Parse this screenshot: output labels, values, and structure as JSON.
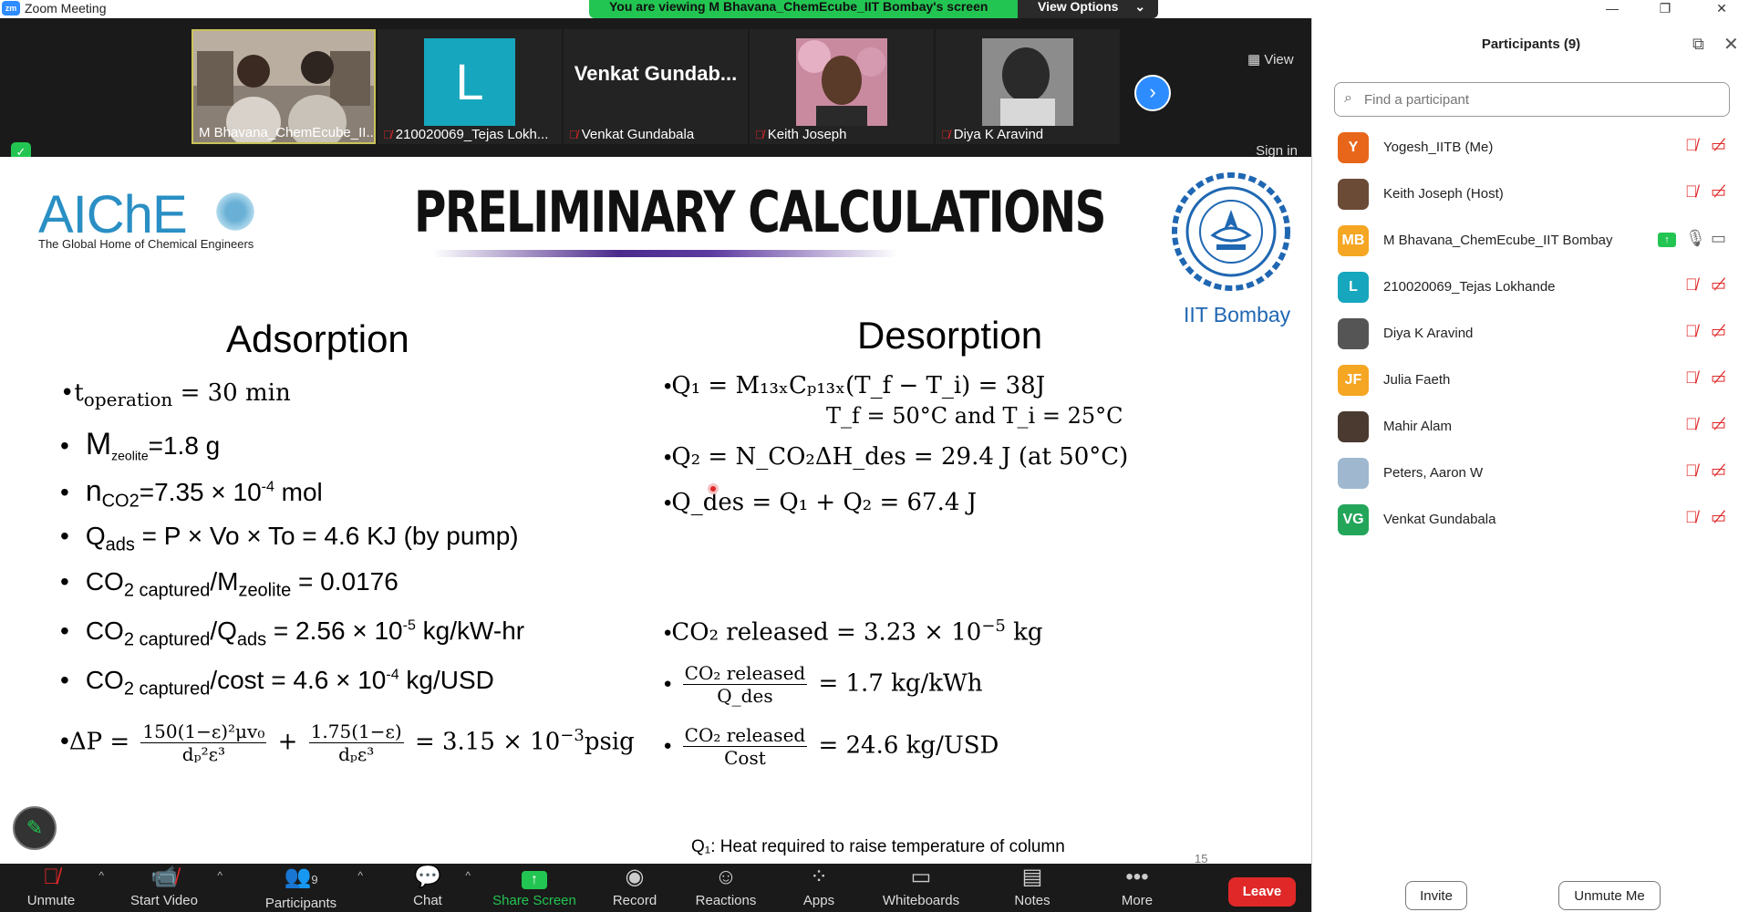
{
  "window": {
    "title": "Zoom Meeting",
    "app_icon": "zm",
    "minimize": "—",
    "restore": "❐",
    "close": "✕"
  },
  "banner": {
    "viewing_text": "You are viewing M Bhavana_ChemEcube_IIT Bombay's screen",
    "view_options": "View Options",
    "view_options_caret": "⌄"
  },
  "video_strip": {
    "tiles": [
      {
        "name": "M Bhavana_ChemEcube_II...",
        "muted": false,
        "active": true
      },
      {
        "name": "210020069_Tejas Lokh...",
        "muted": true,
        "initial": "L",
        "initial_bg": "#16a6bd"
      },
      {
        "name": "Venkat Gundabala",
        "muted": true,
        "big_name": "Venkat Gundab..."
      },
      {
        "name": "Keith Joseph",
        "muted": true
      },
      {
        "name": "Diya K Aravind",
        "muted": true
      }
    ],
    "next_arrow": "›",
    "view_button": "View",
    "view_icon": "grid-icon",
    "sign_in": "Sign in"
  },
  "slide": {
    "logo_text": "AIChE",
    "logo_tagline": "The Global Home of Chemical Engineers",
    "title": "PRELIMINARY CALCULATIONS",
    "institute_name": "IIT Bombay",
    "adsorption_heading": "Adsorption",
    "desorption_heading": "Desorption",
    "adsorption": {
      "t_operation": "t",
      "t_operation_sub": "operation",
      "t_operation_val": " = 30 min",
      "m_zeolite": "M",
      "m_zeolite_sub": "zeolite",
      "m_zeolite_val": "=1.8 g",
      "n_co2": "n",
      "n_co2_sub": "CO2",
      "n_co2_val": "=7.35 × 10",
      "n_co2_exp": "-4",
      "n_co2_unit": " mol",
      "q_ads": "Q",
      "q_ads_sub": "ads",
      "q_ads_val": " = P × Vo × To = 4.6 KJ  (by pump)",
      "ratio1_a": "CO",
      "ratio1_b": "2 captured",
      "ratio1_c": "/M",
      "ratio1_d": "zeolite",
      "ratio1_val": " = 0.0176",
      "ratio2_a": "CO",
      "ratio2_b": "2 captured",
      "ratio2_c": "/Q",
      "ratio2_d": "ads",
      "ratio2_val": " = 2.56 × 10",
      "ratio2_exp": "-5",
      "ratio2_unit": " kg/kW-hr",
      "ratio3_a": "CO",
      "ratio3_b": "2 captured",
      "ratio3_c": "/cost = 4.6 × 10",
      "ratio3_exp": "-4",
      "ratio3_unit": " kg/USD",
      "dp_lhs": "ΔP = ",
      "dp_num1": "150(1−ε)²μv₀",
      "dp_den1": "dₚ²ε³",
      "dp_plus": "+",
      "dp_num2": "1.75(1−ε)",
      "dp_den2": "dₚε³",
      "dp_rhs": "= 3.15 × 10",
      "dp_exp": "−3",
      "dp_unit": "psig"
    },
    "desorption": {
      "q1": "Q₁ =  M₁₃ₓCₚ₁₃ₓ(T_f − T_i) = 38J",
      "q1_cond": "T_f =  50°C and T_i = 25°C",
      "q2": "Q₂ = N_CO₂ΔH_des =   29.4 J (at 50°C)",
      "qdes": "Q_des =  Q₁ + Q₂ = 67.4 J",
      "co2_released": "CO₂ released = 3.23 × 10",
      "co2_released_exp": "−5",
      "co2_released_unit": " kg",
      "frac1_num": "CO₂ released",
      "frac1_den": "Q_des",
      "frac1_val": "= 1.7 kg/kWh",
      "frac2_num": "CO₂ released",
      "frac2_den": "Cost",
      "frac2_val": "= 24.6 kg/USD"
    },
    "footnote": "Q₁: Heat required to raise temperature of column",
    "page_number": "15"
  },
  "toolbar": {
    "items": [
      {
        "label": "Unmute",
        "icon": "mic-off-icon"
      },
      {
        "label": "Start Video",
        "icon": "video-off-icon"
      },
      {
        "label": "Participants",
        "icon": "participants-icon",
        "count": "9"
      },
      {
        "label": "Chat",
        "icon": "chat-icon"
      },
      {
        "label": "Share Screen",
        "icon": "share-screen-icon"
      },
      {
        "label": "Record",
        "icon": "record-icon"
      },
      {
        "label": "Reactions",
        "icon": "reactions-icon"
      },
      {
        "label": "Apps",
        "icon": "apps-icon"
      },
      {
        "label": "Whiteboards",
        "icon": "whiteboard-icon"
      },
      {
        "label": "Notes",
        "icon": "notes-icon"
      },
      {
        "label": "More",
        "icon": "more-icon"
      }
    ],
    "leave": "Leave"
  },
  "participants": {
    "title": "Participants (9)",
    "search_placeholder": "Find a participant",
    "list": [
      {
        "name": "Yogesh_IITB (Me)",
        "initials": "Y",
        "color": "#e8661a",
        "photo": false
      },
      {
        "name": "Keith Joseph (Host)",
        "initials": "",
        "color": "#6b4a36",
        "photo": true
      },
      {
        "name": "M Bhavana_ChemEcube_IIT Bombay",
        "initials": "MB",
        "color": "#f5a623",
        "photo": false,
        "sharing": true
      },
      {
        "name": "210020069_Tejas Lokhande",
        "initials": "L",
        "color": "#16a6bd",
        "photo": false
      },
      {
        "name": "Diya K Aravind",
        "initials": "",
        "color": "#555555",
        "photo": true
      },
      {
        "name": "Julia Faeth",
        "initials": "JF",
        "color": "#f5a623",
        "photo": false
      },
      {
        "name": "Mahir Alam",
        "initials": "",
        "color": "#4a3a30",
        "photo": true
      },
      {
        "name": "Peters, Aaron W",
        "initials": "",
        "color": "#9fb8d0",
        "photo": true
      },
      {
        "name": "Venkat Gundabala",
        "initials": "VG",
        "color": "#23a55a",
        "photo": false
      }
    ],
    "invite": "Invite",
    "unmute_me": "Unmute Me"
  }
}
